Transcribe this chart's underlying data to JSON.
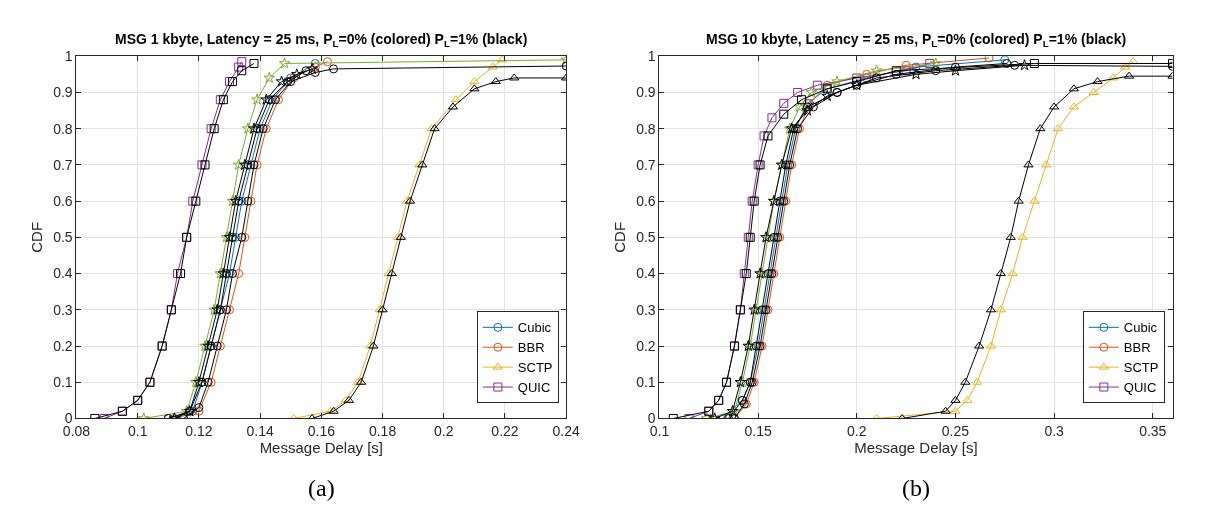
{
  "chart_data": [
    {
      "type": "line",
      "title": "MSG 1 kbyte, Latency = 25 ms, P$_{L}$=0% (colored) P$_{L}$=1% (black)",
      "xlabel": "Message Delay [s]",
      "ylabel": "CDF",
      "xlim": [
        0.08,
        0.24
      ],
      "xticks": [
        0.08,
        0.1,
        0.12,
        0.14,
        0.16,
        0.18,
        0.2,
        0.22,
        0.24
      ],
      "ylim": [
        0,
        1
      ],
      "yticks": [
        0,
        0.1,
        0.2,
        0.3,
        0.4,
        0.5,
        0.6,
        0.7,
        0.8,
        0.9,
        1
      ],
      "grid": true,
      "legend": "bottom right",
      "annotations": [
        "(a)"
      ],
      "series": [
        {
          "name": "Cubic",
          "color": "#0072bd",
          "marker": "circle",
          "x": [
            0.11,
            0.118,
            0.121,
            0.124,
            0.127,
            0.13,
            0.132,
            0.134,
            0.137,
            0.14,
            0.144,
            0.15,
            0.158
          ],
          "values": [
            0,
            0.02,
            0.1,
            0.2,
            0.3,
            0.4,
            0.5,
            0.6,
            0.7,
            0.8,
            0.88,
            0.94,
            0.98
          ]
        },
        {
          "name": "BBR",
          "color": "#d95319",
          "marker": "circle",
          "x": [
            0.112,
            0.12,
            0.124,
            0.127,
            0.13,
            0.133,
            0.135,
            0.137,
            0.139,
            0.142,
            0.146,
            0.151,
            0.158,
            0.162
          ],
          "values": [
            0,
            0.02,
            0.1,
            0.2,
            0.3,
            0.4,
            0.5,
            0.6,
            0.7,
            0.8,
            0.88,
            0.94,
            0.97,
            0.985
          ]
        },
        {
          "name": "SCTP",
          "color": "#edb120",
          "marker": "triangle",
          "x": [
            0.151,
            0.163,
            0.168,
            0.172,
            0.176,
            0.179,
            0.182,
            0.185,
            0.188,
            0.192,
            0.196,
            0.204,
            0.21,
            0.216,
            0.219
          ],
          "values": [
            0,
            0.02,
            0.05,
            0.1,
            0.2,
            0.3,
            0.4,
            0.5,
            0.6,
            0.7,
            0.8,
            0.88,
            0.93,
            0.97,
            0.99
          ]
        },
        {
          "name": "QUIC",
          "color": "#7e2f8e",
          "marker": "square",
          "x": [
            0.089,
            0.095,
            0.1,
            0.104,
            0.108,
            0.111,
            0.113,
            0.116,
            0.118,
            0.121,
            0.124,
            0.127,
            0.13,
            0.133,
            0.134
          ],
          "values": [
            0,
            0.02,
            0.05,
            0.1,
            0.2,
            0.3,
            0.4,
            0.5,
            0.6,
            0.7,
            0.8,
            0.88,
            0.93,
            0.97,
            0.985
          ]
        },
        {
          "color": "#77ac30",
          "marker": "star",
          "x": [
            0.102,
            0.116,
            0.119,
            0.122,
            0.125,
            0.127,
            0.129,
            0.131,
            0.133,
            0.136,
            0.139,
            0.143,
            0.148,
            0.24
          ],
          "values": [
            0,
            0.02,
            0.1,
            0.2,
            0.3,
            0.4,
            0.5,
            0.6,
            0.7,
            0.8,
            0.88,
            0.94,
            0.98,
            0.99
          ]
        },
        {
          "color": "#000000",
          "marker": "circle",
          "x": [
            0.11,
            0.117,
            0.121,
            0.124,
            0.127,
            0.129,
            0.131,
            0.133,
            0.136,
            0.139,
            0.143,
            0.149,
            0.155
          ],
          "values": [
            0,
            0.02,
            0.1,
            0.2,
            0.3,
            0.4,
            0.5,
            0.6,
            0.7,
            0.8,
            0.88,
            0.93,
            0.96
          ]
        },
        {
          "color": "#000000",
          "marker": "circle",
          "x": [
            0.115,
            0.12,
            0.123,
            0.126,
            0.129,
            0.131,
            0.134,
            0.136,
            0.138,
            0.141,
            0.145,
            0.15,
            0.158,
            0.164,
            0.24
          ],
          "values": [
            0,
            0.03,
            0.1,
            0.2,
            0.3,
            0.4,
            0.5,
            0.6,
            0.7,
            0.8,
            0.88,
            0.93,
            0.955,
            0.965,
            0.973
          ]
        },
        {
          "color": "#000000",
          "marker": "triangle",
          "x": [
            0.157,
            0.164,
            0.169,
            0.173,
            0.177,
            0.18,
            0.183,
            0.186,
            0.189,
            0.193,
            0.197,
            0.203,
            0.21,
            0.217,
            0.223,
            0.24
          ],
          "values": [
            0,
            0.02,
            0.05,
            0.1,
            0.2,
            0.3,
            0.4,
            0.5,
            0.6,
            0.7,
            0.8,
            0.86,
            0.91,
            0.93,
            0.94,
            0.94
          ]
        },
        {
          "color": "#000000",
          "marker": "square",
          "x": [
            0.086,
            0.095,
            0.1,
            0.104,
            0.108,
            0.111,
            0.114,
            0.116,
            0.119,
            0.122,
            0.125,
            0.128,
            0.131,
            0.134,
            0.138
          ],
          "values": [
            0,
            0.02,
            0.05,
            0.1,
            0.2,
            0.3,
            0.4,
            0.5,
            0.6,
            0.7,
            0.8,
            0.88,
            0.93,
            0.96,
            0.98
          ]
        },
        {
          "color": "#000000",
          "marker": "star",
          "x": [
            0.112,
            0.117,
            0.12,
            0.123,
            0.126,
            0.128,
            0.13,
            0.132,
            0.135,
            0.138,
            0.142,
            0.147,
            0.152,
            0.157
          ],
          "values": [
            0,
            0.02,
            0.1,
            0.2,
            0.3,
            0.4,
            0.5,
            0.6,
            0.7,
            0.8,
            0.88,
            0.93,
            0.95,
            0.965
          ]
        }
      ]
    },
    {
      "type": "line",
      "title": "MSG 10 kbyte, Latency = 25 ms, P$_{L}$=0% (colored) P$_{L}$=1% (black)",
      "xlabel": "Message Delay [s]",
      "ylabel": "CDF",
      "xlim": [
        0.1,
        0.36
      ],
      "xticks": [
        0.1,
        0.15,
        0.2,
        0.25,
        0.3,
        0.35
      ],
      "ylim": [
        0,
        1
      ],
      "yticks": [
        0,
        0.1,
        0.2,
        0.3,
        0.4,
        0.5,
        0.6,
        0.7,
        0.8,
        0.9,
        1
      ],
      "grid": true,
      "legend": "bottom right",
      "annotations": [
        "(b)"
      ],
      "series": [
        {
          "name": "Cubic",
          "color": "#0072bd",
          "marker": "circle",
          "x": [
            0.132,
            0.142,
            0.146,
            0.15,
            0.153,
            0.156,
            0.159,
            0.162,
            0.165,
            0.169,
            0.175,
            0.185,
            0.205,
            0.23,
            0.275
          ],
          "values": [
            0,
            0.05,
            0.1,
            0.2,
            0.3,
            0.4,
            0.5,
            0.6,
            0.7,
            0.8,
            0.87,
            0.91,
            0.94,
            0.97,
            0.99
          ]
        },
        {
          "name": "BBR",
          "color": "#d95319",
          "marker": "circle",
          "x": [
            0.138,
            0.144,
            0.148,
            0.152,
            0.155,
            0.158,
            0.161,
            0.164,
            0.167,
            0.171,
            0.176,
            0.185,
            0.205,
            0.225,
            0.267
          ],
          "values": [
            0,
            0.04,
            0.1,
            0.2,
            0.3,
            0.4,
            0.5,
            0.6,
            0.7,
            0.8,
            0.87,
            0.92,
            0.95,
            0.975,
            0.995
          ]
        },
        {
          "name": "SCTP",
          "color": "#edb120",
          "marker": "triangle",
          "x": [
            0.21,
            0.25,
            0.256,
            0.261,
            0.268,
            0.273,
            0.279,
            0.284,
            0.29,
            0.296,
            0.302,
            0.31,
            0.32,
            0.33,
            0.336,
            0.34
          ],
          "values": [
            0,
            0.02,
            0.05,
            0.1,
            0.2,
            0.3,
            0.4,
            0.5,
            0.6,
            0.7,
            0.8,
            0.86,
            0.9,
            0.94,
            0.97,
            0.985
          ]
        },
        {
          "name": "QUIC",
          "color": "#7e2f8e",
          "marker": "square",
          "x": [
            0.115,
            0.125,
            0.13,
            0.134,
            0.138,
            0.141,
            0.143,
            0.145,
            0.147,
            0.15,
            0.153,
            0.157,
            0.163,
            0.17,
            0.18,
            0.2,
            0.225,
            0.237
          ],
          "values": [
            0,
            0.02,
            0.05,
            0.1,
            0.2,
            0.3,
            0.4,
            0.5,
            0.6,
            0.7,
            0.78,
            0.83,
            0.87,
            0.9,
            0.92,
            0.94,
            0.96,
            0.98
          ]
        },
        {
          "color": "#77ac30",
          "marker": "star",
          "x": [
            0.124,
            0.138,
            0.142,
            0.146,
            0.149,
            0.152,
            0.155,
            0.158,
            0.162,
            0.166,
            0.171,
            0.177,
            0.19,
            0.21,
            0.24
          ],
          "values": [
            0,
            0.02,
            0.1,
            0.2,
            0.3,
            0.4,
            0.5,
            0.6,
            0.7,
            0.8,
            0.86,
            0.9,
            0.93,
            0.96,
            0.98
          ]
        },
        {
          "color": "#000000",
          "marker": "circle",
          "x": [
            0.135,
            0.142,
            0.146,
            0.149,
            0.152,
            0.155,
            0.158,
            0.161,
            0.164,
            0.168,
            0.175,
            0.19,
            0.21,
            0.24,
            0.28,
            0.36
          ],
          "values": [
            0,
            0.05,
            0.1,
            0.2,
            0.3,
            0.4,
            0.5,
            0.6,
            0.7,
            0.8,
            0.86,
            0.9,
            0.94,
            0.96,
            0.975,
            0.972
          ]
        },
        {
          "color": "#000000",
          "marker": "circle",
          "x": [
            0.138,
            0.143,
            0.147,
            0.151,
            0.154,
            0.157,
            0.16,
            0.163,
            0.166,
            0.17,
            0.178,
            0.19,
            0.2,
            0.22,
            0.25,
            0.276
          ],
          "values": [
            0,
            0.04,
            0.1,
            0.2,
            0.3,
            0.4,
            0.5,
            0.6,
            0.7,
            0.8,
            0.86,
            0.9,
            0.92,
            0.95,
            0.97,
            0.98
          ]
        },
        {
          "color": "#000000",
          "marker": "triangle",
          "x": [
            0.223,
            0.245,
            0.25,
            0.255,
            0.262,
            0.268,
            0.273,
            0.278,
            0.282,
            0.287,
            0.293,
            0.3,
            0.31,
            0.322,
            0.338,
            0.36
          ],
          "values": [
            0,
            0.02,
            0.05,
            0.1,
            0.2,
            0.3,
            0.4,
            0.5,
            0.6,
            0.7,
            0.8,
            0.86,
            0.91,
            0.93,
            0.945,
            0.945
          ]
        },
        {
          "color": "#000000",
          "marker": "square",
          "x": [
            0.107,
            0.125,
            0.13,
            0.134,
            0.138,
            0.141,
            0.144,
            0.146,
            0.148,
            0.151,
            0.155,
            0.163,
            0.172,
            0.185,
            0.2,
            0.22,
            0.29,
            0.36
          ],
          "values": [
            0,
            0.02,
            0.05,
            0.1,
            0.2,
            0.3,
            0.4,
            0.5,
            0.6,
            0.7,
            0.78,
            0.84,
            0.88,
            0.91,
            0.93,
            0.96,
            0.98,
            0.98
          ]
        },
        {
          "color": "#000000",
          "marker": "star",
          "x": [
            0.128,
            0.137,
            0.141,
            0.145,
            0.148,
            0.151,
            0.154,
            0.158,
            0.162,
            0.167,
            0.175,
            0.185,
            0.2,
            0.23,
            0.25,
            0.285
          ],
          "values": [
            0,
            0.02,
            0.1,
            0.2,
            0.3,
            0.4,
            0.5,
            0.6,
            0.7,
            0.8,
            0.85,
            0.89,
            0.92,
            0.95,
            0.96,
            0.975
          ]
        }
      ]
    }
  ]
}
